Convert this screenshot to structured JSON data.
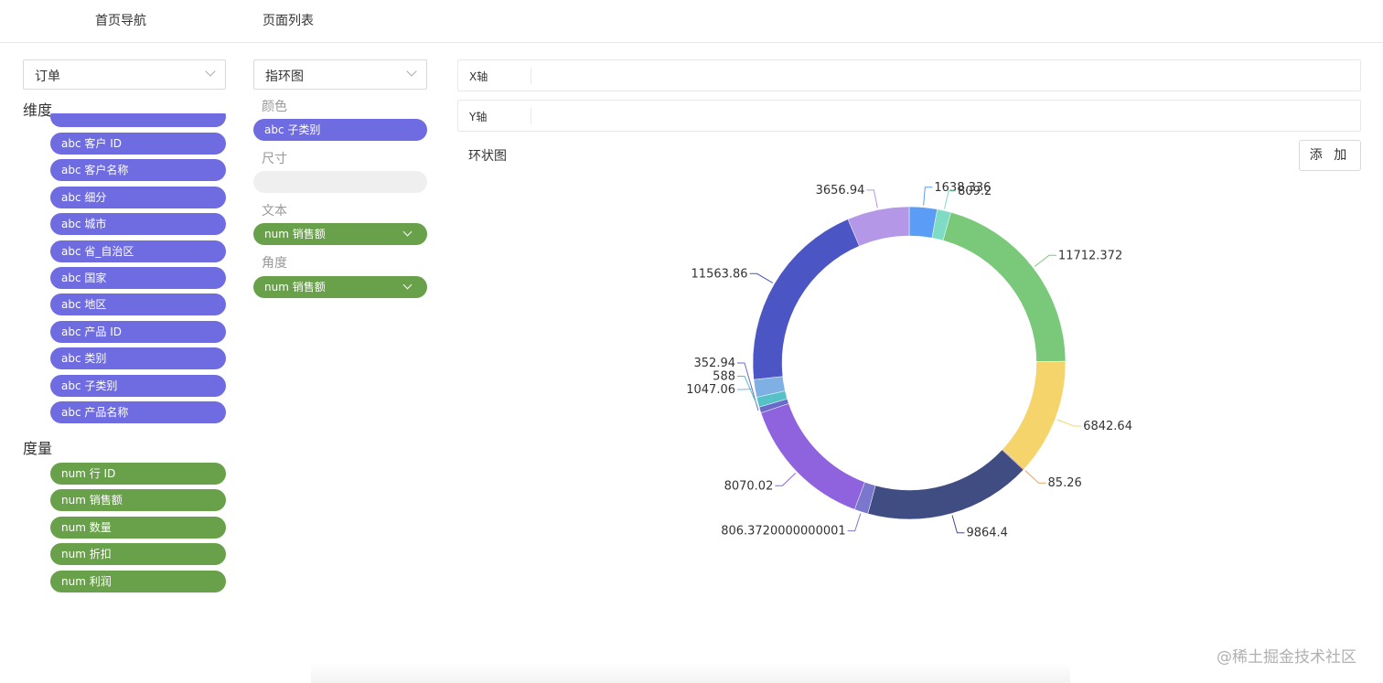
{
  "topnav": {
    "home": "首页导航",
    "pages": "页面列表"
  },
  "left": {
    "table_select": "订单",
    "dim_title": "维度",
    "dimensions": [
      "abc 客户 ID",
      "abc 客户名称",
      "abc 细分",
      "abc 城市",
      "abc 省_自治区",
      "abc 国家",
      "abc 地区",
      "abc 产品 ID",
      "abc 类别",
      "abc 子类别",
      "abc 产品名称"
    ],
    "measure_title": "度量",
    "measures": [
      "num 行 ID",
      "num 销售额",
      "num 数量",
      "num 折扣",
      "num 利润"
    ]
  },
  "middle": {
    "chart_type": "指环图",
    "color_label": "颜色",
    "color_field": "abc 子类别",
    "size_label": "尺寸",
    "text_label": "文本",
    "text_field": "num 销售额",
    "angle_label": "角度",
    "angle_field": "num 销售额"
  },
  "right": {
    "x_axis_label": "X轴",
    "y_axis_label": "Y轴",
    "chart_title": "环状图",
    "add_button": "添 加"
  },
  "watermark": "@稀土掘金技术社区",
  "chart_data": {
    "type": "pie",
    "donut": true,
    "labels": [
      "1638.336",
      "809.2",
      "11712.372",
      "6842.64",
      "85.26",
      "9864.4",
      "806.3720000000001",
      "8070.02",
      "352.94",
      "588",
      "1047.06",
      "11563.86",
      "3656.94"
    ],
    "values": [
      1638.336,
      809.2,
      11712.372,
      6842.64,
      85.26,
      9864.4,
      806.3720000000001,
      8070.02,
      352.94,
      588,
      1047.06,
      11563.86,
      3656.94
    ],
    "colors": [
      "#5b9cf6",
      "#7fdcc4",
      "#7ac879",
      "#f5d46b",
      "#e7a35d",
      "#404d82",
      "#7b77cc",
      "#8f63dd",
      "#6a6ac8",
      "#56c2c7",
      "#7fb0e3",
      "#4b55c4",
      "#b497e6"
    ]
  }
}
